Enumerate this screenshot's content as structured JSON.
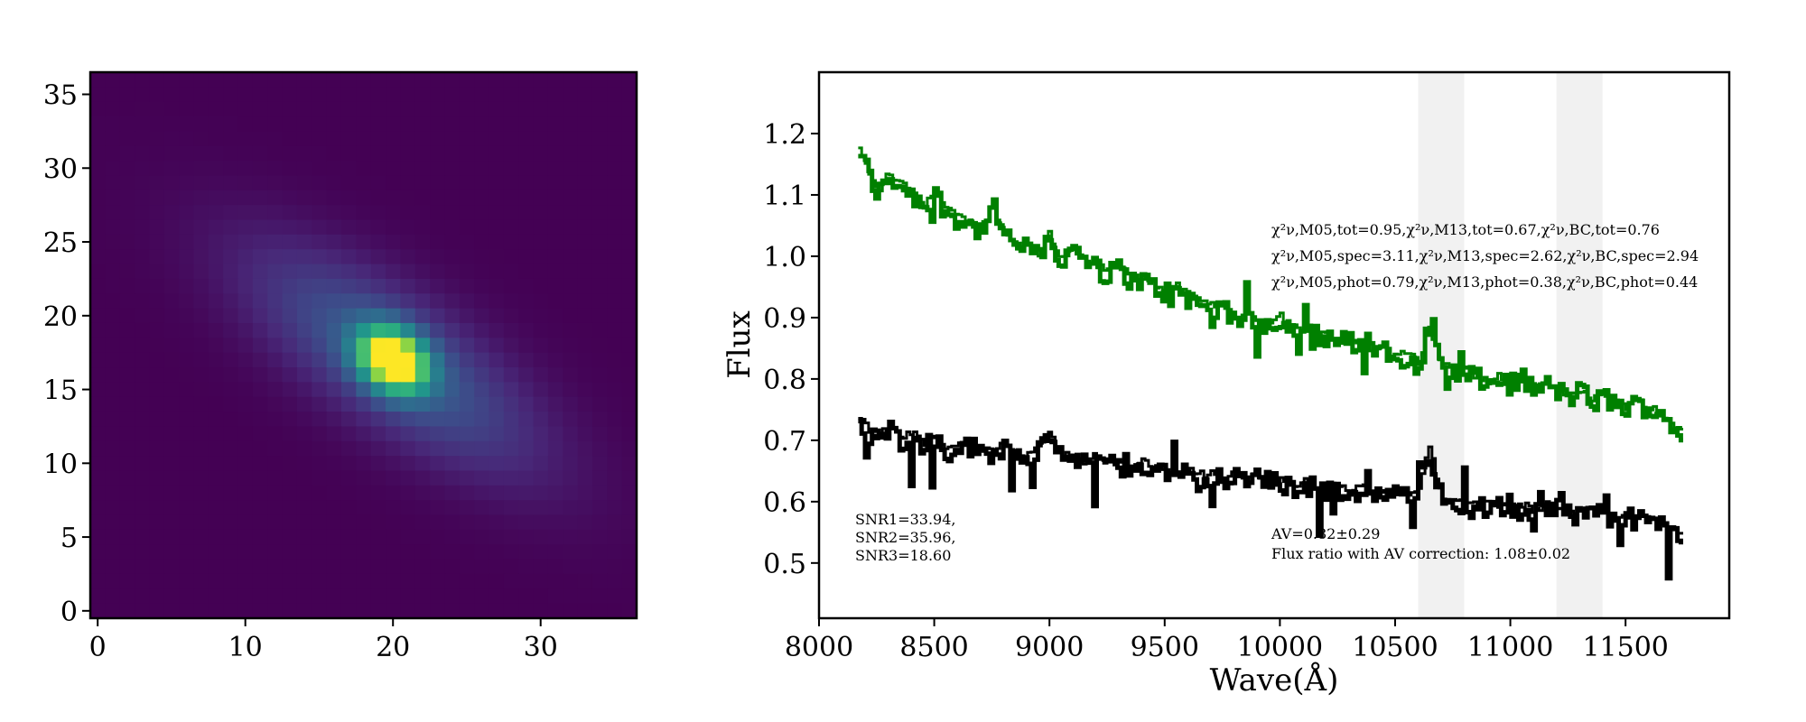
{
  "chart_data": [
    {
      "type": "heatmap",
      "title": "",
      "xlabel": "",
      "ylabel": "",
      "xlim": [
        -0.5,
        36.5
      ],
      "ylim": [
        36.5,
        -0.5
      ],
      "x_ticks": [
        0,
        10,
        20,
        30
      ],
      "y_ticks": [
        0,
        5,
        10,
        15,
        20,
        25,
        30,
        35
      ],
      "grid": false,
      "colormap": "viridis",
      "image_size": [
        37,
        37
      ],
      "source": {
        "center": [
          20,
          19
        ],
        "peak": 1.0,
        "core_sigma_major": 1.7,
        "core_sigma_minor": 1.3,
        "halo_amplitude": 0.3,
        "halo_sigma_major": 8.0,
        "halo_sigma_minor": 3.0,
        "position_angle_deg": -35
      }
    },
    {
      "type": "line",
      "title": "",
      "xlabel": "Wave(Å)",
      "ylabel": "Flux",
      "xlim": [
        8000,
        11950
      ],
      "ylim": [
        0.41,
        1.3
      ],
      "x_ticks": [
        8000,
        8500,
        9000,
        9500,
        10000,
        10500,
        11000,
        11500
      ],
      "y_ticks": [
        0.5,
        0.6,
        0.7,
        0.8,
        0.9,
        1.0,
        1.1,
        1.2
      ],
      "grid": false,
      "shaded_bands": [
        [
          10600,
          10800
        ],
        [
          11200,
          11400
        ]
      ],
      "series": [
        {
          "color": "#008000",
          "style": "thick-jagged-step",
          "x": [
            8170,
            8250,
            8300,
            8330,
            8400,
            8450,
            8500,
            8550,
            8600,
            8650,
            8700,
            8750,
            8800,
            8850,
            8900,
            8950,
            9000,
            9020,
            9050,
            9100,
            9150,
            9200,
            9250,
            9300,
            9350,
            9400,
            9450,
            9500,
            9550,
            9600,
            9650,
            9700,
            9750,
            9800,
            9850,
            9900,
            9950,
            10000,
            10050,
            10100,
            10150,
            10200,
            10250,
            10300,
            10350,
            10400,
            10450,
            10500,
            10550,
            10600,
            10640,
            10700,
            10750,
            10800,
            10850,
            10900,
            10950,
            11000,
            11050,
            11100,
            11150,
            11200,
            11250,
            11300,
            11350,
            11400,
            11450,
            11500,
            11550,
            11600,
            11650,
            11700,
            11750
          ],
          "y": [
            1.17,
            1.1,
            1.13,
            1.12,
            1.1,
            1.08,
            1.1,
            1.07,
            1.06,
            1.05,
            1.04,
            1.08,
            1.03,
            1.02,
            1.01,
            1.0,
            1.04,
            1.0,
            0.99,
            1.01,
            0.99,
            0.98,
            0.97,
            0.98,
            0.96,
            0.96,
            0.95,
            0.94,
            0.95,
            0.93,
            0.92,
            0.92,
            0.91,
            0.9,
            0.9,
            0.89,
            0.89,
            0.9,
            0.88,
            0.88,
            0.87,
            0.87,
            0.86,
            0.86,
            0.85,
            0.84,
            0.85,
            0.83,
            0.84,
            0.82,
            0.88,
            0.82,
            0.81,
            0.81,
            0.8,
            0.79,
            0.8,
            0.79,
            0.8,
            0.78,
            0.79,
            0.78,
            0.77,
            0.78,
            0.76,
            0.77,
            0.76,
            0.75,
            0.76,
            0.75,
            0.74,
            0.72,
            0.71
          ]
        },
        {
          "color": "#000000",
          "style": "thick-jagged-step",
          "x": [
            8170,
            8250,
            8300,
            8350,
            8400,
            8450,
            8500,
            8550,
            8600,
            8650,
            8700,
            8750,
            8800,
            8850,
            8900,
            8950,
            9000,
            9020,
            9050,
            9100,
            9150,
            9200,
            9250,
            9300,
            9350,
            9400,
            9450,
            9500,
            9550,
            9600,
            9650,
            9700,
            9750,
            9800,
            9850,
            9900,
            9950,
            10000,
            10050,
            10100,
            10150,
            10200,
            10250,
            10300,
            10350,
            10400,
            10450,
            10500,
            10550,
            10600,
            10640,
            10700,
            10750,
            10800,
            10850,
            10900,
            10950,
            11000,
            11050,
            11100,
            11150,
            11200,
            11250,
            11300,
            11350,
            11400,
            11450,
            11500,
            11550,
            11600,
            11650,
            11700,
            11750
          ],
          "y": [
            0.73,
            0.7,
            0.72,
            0.7,
            0.71,
            0.69,
            0.7,
            0.68,
            0.69,
            0.69,
            0.68,
            0.68,
            0.69,
            0.68,
            0.67,
            0.68,
            0.71,
            0.68,
            0.67,
            0.67,
            0.66,
            0.67,
            0.66,
            0.66,
            0.65,
            0.66,
            0.65,
            0.65,
            0.64,
            0.65,
            0.64,
            0.64,
            0.63,
            0.64,
            0.63,
            0.64,
            0.63,
            0.63,
            0.62,
            0.63,
            0.62,
            0.62,
            0.62,
            0.61,
            0.62,
            0.61,
            0.61,
            0.61,
            0.61,
            0.62,
            0.69,
            0.6,
            0.6,
            0.59,
            0.59,
            0.59,
            0.59,
            0.59,
            0.59,
            0.58,
            0.59,
            0.58,
            0.58,
            0.58,
            0.58,
            0.58,
            0.57,
            0.57,
            0.57,
            0.57,
            0.56,
            0.55,
            0.54
          ]
        }
      ],
      "annotations": {
        "chi_tot": "χ²ν,M05,tot=0.95,χ²ν,M13,tot=0.67,χ²ν,BC,tot=0.76",
        "chi_spec": "χ²ν,M05,spec=3.11,χ²ν,M13,spec=2.62,χ²ν,BC,spec=2.94",
        "chi_phot": "χ²ν,M05,phot=0.79,χ²ν,M13,phot=0.38,χ²ν,BC,phot=0.44",
        "snr1": "SNR1=33.94,",
        "snr2": "SNR2=35.96,",
        "snr3": "SNR3=18.60",
        "av": "AV=0.82±0.29",
        "flux_ratio": "Flux ratio with AV correction: 1.08±0.02"
      }
    }
  ]
}
